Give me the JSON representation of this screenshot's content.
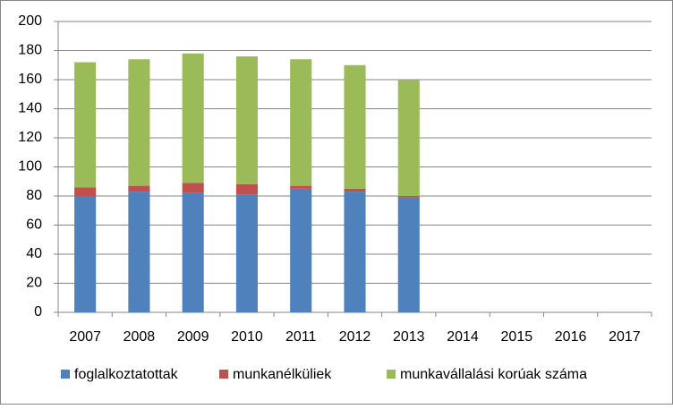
{
  "chart_data": {
    "type": "stacked-bar",
    "categories": [
      "2007",
      "2008",
      "2009",
      "2010",
      "2011",
      "2012",
      "2013",
      "2014",
      "2015",
      "2016",
      "2017"
    ],
    "series": [
      {
        "name": "foglalkoztatottak",
        "color": "#4f81bd",
        "values": [
          80,
          83,
          82,
          81,
          85,
          83,
          79,
          null,
          null,
          null,
          null
        ]
      },
      {
        "name": "munkanélküliek",
        "color": "#c0504d",
        "values": [
          6,
          4,
          7,
          7,
          2,
          2,
          1,
          null,
          null,
          null,
          null
        ]
      },
      {
        "name": "munkavállalási korúak száma",
        "color": "#9bbb59",
        "values": [
          86,
          87,
          89,
          88,
          87,
          85,
          80,
          null,
          null,
          null,
          null
        ]
      }
    ],
    "ylim": [
      0,
      200
    ],
    "yticks": [
      0,
      20,
      40,
      60,
      80,
      100,
      120,
      140,
      160,
      180,
      200
    ],
    "grid": true
  }
}
